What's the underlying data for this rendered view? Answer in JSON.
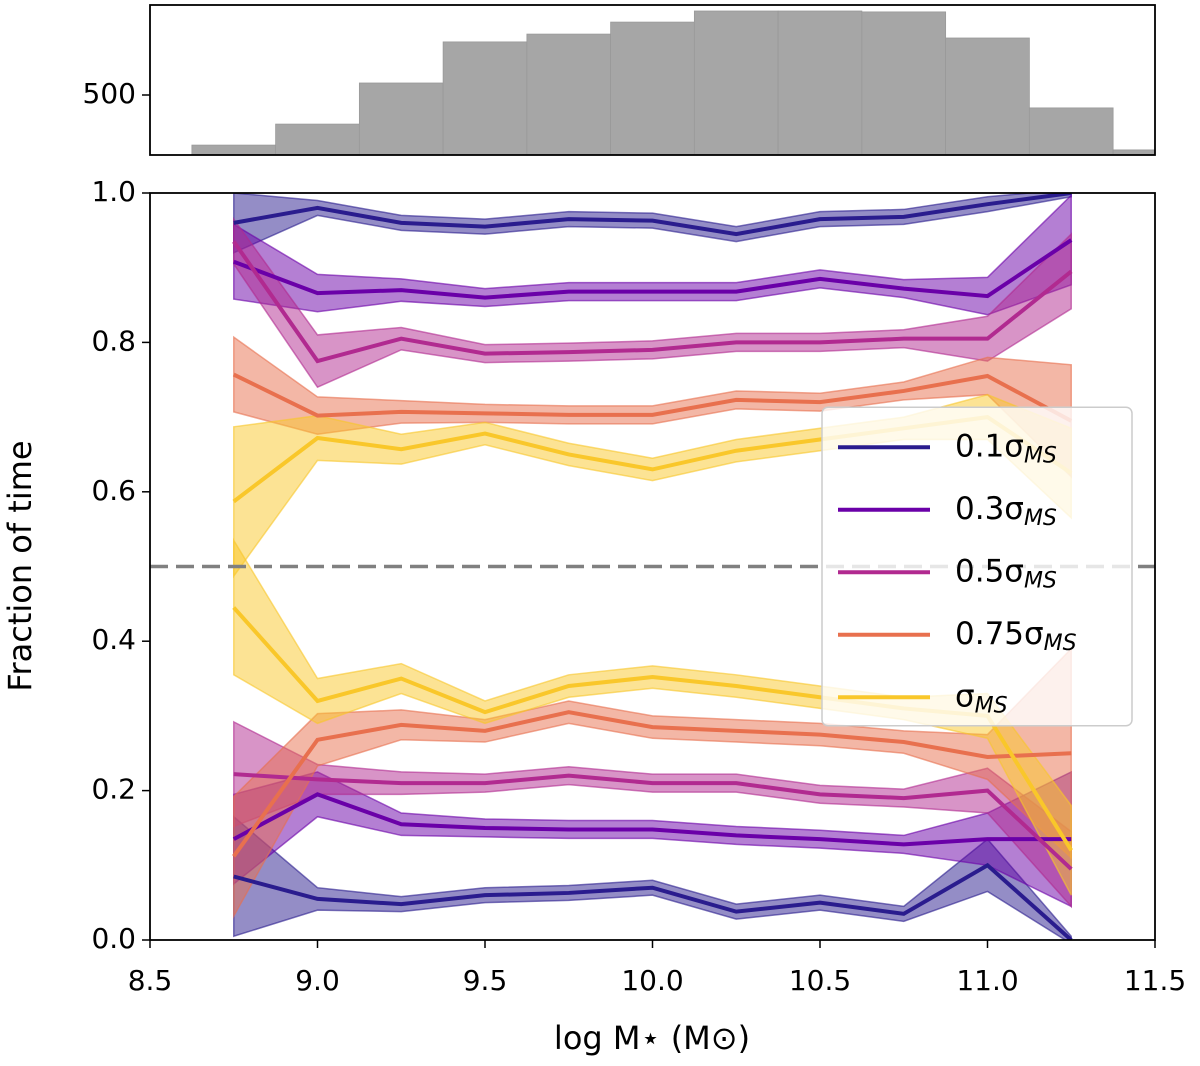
{
  "chart_data": [
    {
      "type": "histogram",
      "bins": [
        8.625,
        8.875,
        9.125,
        9.375,
        9.625,
        9.875,
        10.125,
        10.375,
        10.625,
        10.875,
        11.125,
        11.375,
        11.625
      ],
      "counts": [
        333,
        403,
        540,
        677,
        703,
        743,
        780,
        780,
        777,
        690,
        457,
        317
      ],
      "color": "#a6a6a6",
      "xlim": [
        8.5,
        11.5
      ],
      "ylim": [
        300,
        800
      ],
      "yticks": [
        500
      ]
    },
    {
      "type": "line",
      "xlabel": "log M⋆ (M⊙)",
      "ylabel": "Fraction of time",
      "x": [
        8.75,
        9.0,
        9.25,
        9.5,
        9.75,
        10.0,
        10.25,
        10.5,
        10.75,
        11.0,
        11.25
      ],
      "xlim": [
        8.5,
        11.5
      ],
      "ylim": [
        0,
        1
      ],
      "xticks": [
        8.5,
        {
          "value": 9,
          "label": "9.0"
        },
        9.5,
        {
          "value": 10,
          "label": "10.0"
        },
        10.5,
        {
          "value": 11,
          "label": "11.0"
        },
        11.5
      ],
      "yticks": [
        {
          "value": 0,
          "label": "0.0"
        },
        0.2,
        0.4,
        0.6,
        0.8,
        {
          "value": 1,
          "label": "1.0"
        }
      ],
      "hline": 0.5,
      "legend": "center right",
      "series": [
        {
          "name": "0.1σ",
          "name_sub": "MS",
          "color": "#2a1c8e",
          "lines": [
            {
              "values": [
                0.96,
                0.98,
                0.96,
                0.955,
                0.965,
                0.963,
                0.945,
                0.965,
                0.968,
                0.985,
                1.0
              ],
              "errors": [
                0.04,
                0.01,
                0.01,
                0.01,
                0.01,
                0.01,
                0.01,
                0.01,
                0.01,
                0.01,
                0.005
              ]
            },
            {
              "values": [
                0.085,
                0.055,
                0.048,
                0.06,
                0.063,
                0.07,
                0.038,
                0.05,
                0.035,
                0.1,
                0.0
              ],
              "errors": [
                0.08,
                0.015,
                0.01,
                0.01,
                0.01,
                0.01,
                0.01,
                0.01,
                0.01,
                0.035,
                0.005
              ]
            }
          ]
        },
        {
          "name": "0.3σ",
          "name_sub": "MS",
          "color": "#6a00a8",
          "lines": [
            {
              "values": [
                0.908,
                0.866,
                0.87,
                0.86,
                0.868,
                0.868,
                0.868,
                0.885,
                0.872,
                0.862,
                0.937
              ],
              "errors": [
                0.05,
                0.025,
                0.015,
                0.012,
                0.012,
                0.012,
                0.012,
                0.012,
                0.012,
                0.025,
                0.06
              ]
            },
            {
              "values": [
                0.135,
                0.195,
                0.155,
                0.15,
                0.148,
                0.148,
                0.14,
                0.135,
                0.128,
                0.135,
                0.135
              ],
              "errors": [
                0.06,
                0.03,
                0.015,
                0.012,
                0.012,
                0.012,
                0.012,
                0.012,
                0.012,
                0.035,
                0.09
              ]
            }
          ]
        },
        {
          "name": "0.5σ",
          "name_sub": "MS",
          "color": "#b12a90",
          "lines": [
            {
              "values": [
                0.935,
                0.775,
                0.805,
                0.785,
                0.787,
                0.79,
                0.8,
                0.8,
                0.805,
                0.805,
                0.895
              ],
              "errors": [
                0.03,
                0.035,
                0.015,
                0.012,
                0.012,
                0.012,
                0.012,
                0.012,
                0.012,
                0.03,
                0.05
              ]
            },
            {
              "values": [
                0.222,
                0.215,
                0.21,
                0.21,
                0.22,
                0.21,
                0.21,
                0.195,
                0.19,
                0.2,
                0.095
              ],
              "errors": [
                0.07,
                0.02,
                0.015,
                0.012,
                0.012,
                0.012,
                0.012,
                0.012,
                0.012,
                0.03,
                0.05
              ]
            }
          ]
        },
        {
          "name": "0.75σ",
          "name_sub": "MS",
          "color": "#e8704e",
          "lines": [
            {
              "values": [
                0.757,
                0.702,
                0.707,
                0.705,
                0.703,
                0.703,
                0.723,
                0.72,
                0.735,
                0.755,
                0.695
              ],
              "errors": [
                0.05,
                0.025,
                0.015,
                0.012,
                0.012,
                0.012,
                0.012,
                0.012,
                0.012,
                0.025,
                0.075
              ]
            },
            {
              "values": [
                0.112,
                0.268,
                0.288,
                0.28,
                0.305,
                0.285,
                0.28,
                0.275,
                0.265,
                0.245,
                0.25
              ],
              "errors": [
                0.08,
                0.035,
                0.02,
                0.015,
                0.015,
                0.015,
                0.015,
                0.015,
                0.015,
                0.03,
                0.14
              ]
            }
          ]
        },
        {
          "name": "σ",
          "name_sub": "MS",
          "color": "#f9c72a",
          "lines": [
            {
              "values": [
                0.587,
                0.672,
                0.657,
                0.678,
                0.65,
                0.63,
                0.655,
                0.67,
                0.685,
                0.7,
                0.625
              ],
              "errors": [
                0.1,
                0.03,
                0.02,
                0.015,
                0.015,
                0.015,
                0.015,
                0.015,
                0.015,
                0.03,
                0.06
              ]
            },
            {
              "values": [
                0.445,
                0.32,
                0.35,
                0.305,
                0.34,
                0.352,
                0.34,
                0.325,
                0.31,
                0.3,
                0.12
              ],
              "errors": [
                0.09,
                0.03,
                0.02,
                0.015,
                0.015,
                0.015,
                0.015,
                0.015,
                0.015,
                0.03,
                0.06
              ]
            }
          ]
        }
      ]
    }
  ]
}
